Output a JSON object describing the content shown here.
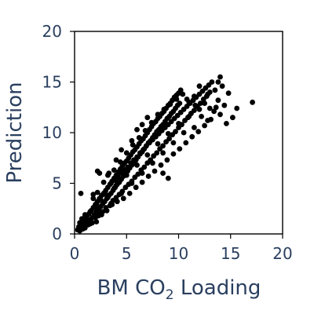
{
  "chart_data": {
    "type": "scatter",
    "title": "",
    "xlabel": {
      "main": "BM CO",
      "sub": "2",
      "tail": " Loading"
    },
    "ylabel": "Prediction",
    "xlim": [
      0,
      20
    ],
    "ylim": [
      0,
      20
    ],
    "xticks": [
      "0",
      "5",
      "10",
      "15",
      "20"
    ],
    "yticks": [
      "0",
      "5",
      "10",
      "15",
      "20"
    ],
    "grid": false,
    "legend": "none",
    "marker_color": "#000000",
    "text_color": "#2a3f5f",
    "points": [
      [
        0.3,
        0.4
      ],
      [
        0.4,
        0.7
      ],
      [
        0.5,
        0.3
      ],
      [
        0.6,
        0.9
      ],
      [
        0.7,
        0.6
      ],
      [
        0.8,
        1.2
      ],
      [
        0.9,
        0.8
      ],
      [
        1.0,
        1.5
      ],
      [
        1.1,
        1.0
      ],
      [
        1.2,
        1.8
      ],
      [
        1.3,
        1.2
      ],
      [
        1.4,
        2.0
      ],
      [
        1.5,
        1.4
      ],
      [
        1.6,
        2.3
      ],
      [
        1.7,
        1.6
      ],
      [
        1.8,
        2.6
      ],
      [
        1.9,
        1.9
      ],
      [
        2.0,
        2.9
      ],
      [
        2.1,
        2.2
      ],
      [
        2.2,
        3.2
      ],
      [
        2.3,
        2.4
      ],
      [
        2.4,
        3.5
      ],
      [
        2.5,
        2.7
      ],
      [
        2.6,
        3.8
      ],
      [
        2.7,
        3.0
      ],
      [
        2.8,
        4.0
      ],
      [
        2.9,
        3.2
      ],
      [
        3.0,
        4.3
      ],
      [
        3.1,
        3.5
      ],
      [
        3.2,
        4.6
      ],
      [
        3.3,
        3.8
      ],
      [
        3.4,
        4.9
      ],
      [
        3.5,
        4.0
      ],
      [
        3.6,
        5.2
      ],
      [
        3.7,
        4.3
      ],
      [
        3.8,
        5.5
      ],
      [
        3.9,
        4.6
      ],
      [
        4.0,
        5.8
      ],
      [
        4.1,
        4.9
      ],
      [
        4.2,
        6.1
      ],
      [
        4.3,
        5.1
      ],
      [
        4.4,
        6.4
      ],
      [
        4.5,
        5.4
      ],
      [
        4.6,
        6.7
      ],
      [
        4.7,
        5.7
      ],
      [
        4.8,
        7.0
      ],
      [
        4.9,
        6.0
      ],
      [
        5.0,
        7.2
      ],
      [
        5.1,
        6.2
      ],
      [
        5.2,
        7.5
      ],
      [
        5.3,
        6.5
      ],
      [
        5.4,
        7.8
      ],
      [
        5.5,
        6.8
      ],
      [
        5.6,
        8.1
      ],
      [
        5.7,
        7.0
      ],
      [
        5.8,
        8.3
      ],
      [
        5.9,
        7.3
      ],
      [
        6.0,
        8.6
      ],
      [
        6.1,
        7.6
      ],
      [
        6.2,
        8.9
      ],
      [
        6.3,
        7.9
      ],
      [
        6.4,
        9.2
      ],
      [
        6.5,
        8.1
      ],
      [
        6.6,
        9.4
      ],
      [
        6.7,
        8.4
      ],
      [
        6.8,
        9.7
      ],
      [
        6.9,
        8.7
      ],
      [
        7.0,
        10.0
      ],
      [
        7.1,
        9.0
      ],
      [
        7.2,
        10.3
      ],
      [
        7.3,
        9.2
      ],
      [
        7.4,
        10.6
      ],
      [
        7.5,
        9.5
      ],
      [
        7.6,
        10.9
      ],
      [
        7.7,
        9.8
      ],
      [
        7.8,
        11.1
      ],
      [
        7.9,
        10.1
      ],
      [
        8.0,
        11.4
      ],
      [
        8.1,
        10.3
      ],
      [
        8.2,
        11.6
      ],
      [
        8.3,
        10.6
      ],
      [
        8.4,
        11.9
      ],
      [
        8.5,
        10.8
      ],
      [
        8.6,
        12.1
      ],
      [
        8.7,
        11.1
      ],
      [
        8.8,
        12.4
      ],
      [
        8.9,
        11.4
      ],
      [
        9.0,
        12.7
      ],
      [
        9.1,
        11.6
      ],
      [
        9.2,
        12.9
      ],
      [
        9.3,
        11.9
      ],
      [
        9.4,
        13.2
      ],
      [
        9.5,
        12.1
      ],
      [
        9.6,
        13.5
      ],
      [
        9.7,
        12.4
      ],
      [
        9.8,
        13.7
      ],
      [
        9.9,
        12.7
      ],
      [
        10.0,
        13.9
      ],
      [
        10.1,
        12.9
      ],
      [
        10.2,
        14.2
      ],
      [
        0.5,
        1.1
      ],
      [
        0.8,
        0.5
      ],
      [
        1.0,
        0.6
      ],
      [
        1.2,
        1.3
      ],
      [
        1.5,
        2.2
      ],
      [
        1.7,
        1.1
      ],
      [
        2.0,
        1.6
      ],
      [
        2.1,
        3.0
      ],
      [
        2.3,
        1.8
      ],
      [
        2.5,
        3.4
      ],
      [
        2.7,
        2.2
      ],
      [
        2.9,
        4.1
      ],
      [
        3.0,
        2.6
      ],
      [
        3.2,
        3.6
      ],
      [
        3.4,
        2.8
      ],
      [
        3.5,
        5.0
      ],
      [
        3.7,
        3.3
      ],
      [
        3.9,
        5.3
      ],
      [
        4.0,
        3.6
      ],
      [
        4.2,
        5.6
      ],
      [
        4.3,
        3.9
      ],
      [
        4.5,
        6.0
      ],
      [
        4.6,
        4.2
      ],
      [
        4.8,
        6.3
      ],
      [
        4.9,
        4.6
      ],
      [
        5.1,
        6.6
      ],
      [
        5.2,
        4.9
      ],
      [
        5.4,
        7.0
      ],
      [
        5.5,
        5.2
      ],
      [
        5.7,
        7.3
      ],
      [
        5.8,
        5.6
      ],
      [
        6.0,
        7.6
      ],
      [
        6.1,
        5.9
      ],
      [
        6.3,
        8.0
      ],
      [
        6.4,
        6.3
      ],
      [
        6.6,
        8.3
      ],
      [
        6.7,
        6.6
      ],
      [
        6.9,
        8.7
      ],
      [
        7.0,
        7.0
      ],
      [
        7.2,
        9.0
      ],
      [
        7.3,
        7.3
      ],
      [
        7.5,
        9.3
      ],
      [
        7.6,
        7.7
      ],
      [
        7.8,
        9.6
      ],
      [
        7.9,
        8.0
      ],
      [
        8.1,
        9.9
      ],
      [
        8.2,
        8.4
      ],
      [
        8.4,
        10.2
      ],
      [
        8.5,
        8.7
      ],
      [
        8.7,
        10.5
      ],
      [
        8.8,
        9.1
      ],
      [
        9.0,
        10.8
      ],
      [
        9.1,
        9.4
      ],
      [
        9.3,
        11.1
      ],
      [
        9.4,
        9.8
      ],
      [
        9.6,
        11.4
      ],
      [
        9.7,
        10.1
      ],
      [
        9.9,
        11.7
      ],
      [
        10.0,
        10.5
      ],
      [
        10.2,
        12.0
      ],
      [
        10.3,
        10.8
      ],
      [
        10.5,
        12.3
      ],
      [
        10.6,
        11.2
      ],
      [
        10.8,
        12.6
      ],
      [
        10.9,
        11.5
      ],
      [
        11.1,
        12.9
      ],
      [
        11.2,
        11.9
      ],
      [
        11.4,
        13.2
      ],
      [
        11.5,
        12.2
      ],
      [
        11.7,
        13.5
      ],
      [
        11.8,
        12.6
      ],
      [
        12.0,
        13.8
      ],
      [
        12.1,
        12.9
      ],
      [
        12.3,
        14.1
      ],
      [
        12.4,
        13.3
      ],
      [
        12.6,
        14.4
      ],
      [
        12.7,
        13.6
      ],
      [
        12.9,
        14.7
      ],
      [
        13.0,
        14.0
      ],
      [
        13.2,
        15.0
      ],
      [
        1.8,
        3.5
      ],
      [
        2.2,
        4.1
      ],
      [
        2.6,
        1.9
      ],
      [
        2.8,
        5.1
      ],
      [
        3.1,
        2.3
      ],
      [
        3.3,
        6.0
      ],
      [
        3.6,
        2.9
      ],
      [
        3.8,
        6.3
      ],
      [
        4.1,
        3.2
      ],
      [
        4.4,
        7.1
      ],
      [
        4.7,
        3.5
      ],
      [
        5.0,
        8.0
      ],
      [
        5.3,
        4.0
      ],
      [
        5.6,
        8.8
      ],
      [
        5.9,
        4.6
      ],
      [
        6.2,
        9.5
      ],
      [
        6.5,
        5.1
      ],
      [
        6.8,
        10.2
      ],
      [
        7.1,
        5.7
      ],
      [
        7.4,
        11.0
      ],
      [
        7.7,
        6.2
      ],
      [
        8.0,
        11.8
      ],
      [
        8.3,
        6.8
      ],
      [
        8.6,
        12.3
      ],
      [
        8.9,
        7.3
      ],
      [
        9.2,
        12.8
      ],
      [
        9.5,
        7.9
      ],
      [
        9.8,
        13.3
      ],
      [
        10.1,
        8.4
      ],
      [
        10.4,
        13.8
      ],
      [
        10.7,
        9.0
      ],
      [
        11.0,
        13.0
      ],
      [
        11.3,
        9.6
      ],
      [
        11.6,
        12.7
      ],
      [
        11.9,
        10.1
      ],
      [
        12.2,
        11.6
      ],
      [
        12.5,
        10.7
      ],
      [
        12.8,
        11.2
      ],
      [
        13.1,
        11.3
      ],
      [
        13.4,
        12.1
      ],
      [
        13.6,
        12.5
      ],
      [
        13.8,
        13.2
      ],
      [
        14.0,
        11.8
      ],
      [
        14.2,
        14.6
      ],
      [
        14.4,
        12.7
      ],
      [
        14.6,
        10.9
      ],
      [
        14.8,
        13.9
      ],
      [
        15.2,
        11.5
      ],
      [
        15.6,
        12.4
      ],
      [
        17.1,
        13.0
      ],
      [
        14.0,
        15.5
      ],
      [
        13.8,
        15.0
      ],
      [
        12.8,
        13.8
      ],
      [
        12.0,
        14.6
      ],
      [
        13.5,
        14.2
      ],
      [
        11.5,
        13.6
      ],
      [
        10.8,
        13.3
      ],
      [
        12.5,
        12.9
      ],
      [
        11.2,
        11.9
      ],
      [
        13.0,
        12.4
      ],
      [
        2.2,
        6.2
      ],
      [
        2.4,
        6.0
      ],
      [
        0.6,
        4.0
      ],
      [
        1.8,
        3.9
      ],
      [
        2.1,
        1.2
      ],
      [
        1.3,
        0.9
      ],
      [
        4.0,
        7.3
      ],
      [
        3.2,
        5.8
      ],
      [
        5.5,
        9.2
      ],
      [
        6.0,
        10.3
      ],
      [
        6.5,
        10.8
      ],
      [
        7.0,
        11.5
      ],
      [
        4.5,
        8.3
      ],
      [
        3.8,
        4.5
      ],
      [
        5.0,
        5.8
      ],
      [
        6.0,
        6.8
      ],
      [
        7.0,
        7.8
      ],
      [
        8.0,
        8.9
      ],
      [
        9.0,
        9.9
      ],
      [
        10.0,
        10.9
      ],
      [
        11.0,
        11.6
      ],
      [
        12.0,
        12.3
      ],
      [
        3.0,
        3.9
      ],
      [
        4.0,
        4.8
      ],
      [
        2.0,
        2.7
      ],
      [
        1.0,
        1.9
      ],
      [
        0.7,
        1.5
      ],
      [
        1.5,
        1.0
      ],
      [
        2.5,
        2.0
      ],
      [
        3.5,
        3.0
      ],
      [
        4.5,
        4.0
      ],
      [
        5.5,
        5.0
      ],
      [
        6.5,
        6.0
      ],
      [
        7.5,
        7.0
      ],
      [
        8.5,
        8.0
      ],
      [
        9.5,
        9.0
      ],
      [
        10.5,
        10.0
      ],
      [
        11.5,
        10.5
      ],
      [
        9.0,
        5.5
      ],
      [
        8.5,
        6.0
      ]
    ]
  }
}
